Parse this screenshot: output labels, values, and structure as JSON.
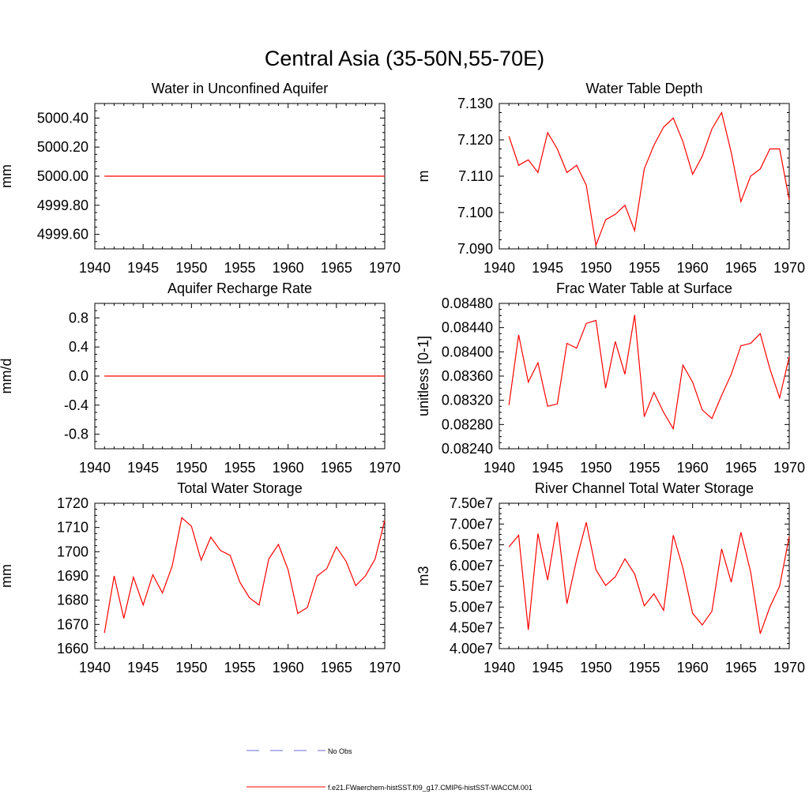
{
  "figure": {
    "title": "Central Asia (35-50N,55-70E)",
    "legend": [
      {
        "label": "No Obs",
        "color": "#6a6ad8",
        "dash": true
      },
      {
        "label": "f.e21.FWaerchem-histSST.f09_g17.CMIP6-histSST-WACCM.001",
        "color": "#ff0000",
        "dash": false
      }
    ]
  },
  "chart_data": [
    {
      "type": "line",
      "title": "Water in Unconfined Aquifer",
      "ylabel": "mm",
      "xlim": [
        1940,
        1970
      ],
      "ylim": [
        4999.5,
        5000.5
      ],
      "xticks": [
        "1940",
        "1945",
        "1950",
        "1955",
        "1960",
        "1965",
        "1970"
      ],
      "yticks": [
        {
          "v": 4999.6,
          "label": "4999.60"
        },
        {
          "v": 4999.8,
          "label": "4999.80"
        },
        {
          "v": 5000.0,
          "label": "5000.00"
        },
        {
          "v": 5000.2,
          "label": "5000.20"
        },
        {
          "v": 5000.4,
          "label": "5000.40"
        }
      ],
      "x": [
        1941,
        1942,
        1943,
        1944,
        1945,
        1946,
        1947,
        1948,
        1949,
        1950,
        1951,
        1952,
        1953,
        1954,
        1955,
        1956,
        1957,
        1958,
        1959,
        1960,
        1961,
        1962,
        1963,
        1964,
        1965,
        1966,
        1967,
        1968,
        1969,
        1970
      ],
      "values": [
        5000,
        5000,
        5000,
        5000,
        5000,
        5000,
        5000,
        5000,
        5000,
        5000,
        5000,
        5000,
        5000,
        5000,
        5000,
        5000,
        5000,
        5000,
        5000,
        5000,
        5000,
        5000,
        5000,
        5000,
        5000,
        5000,
        5000,
        5000,
        5000,
        5000
      ],
      "color": "#ff0000"
    },
    {
      "type": "line",
      "title": "Water Table Depth",
      "ylabel": "m",
      "xlim": [
        1940,
        1970
      ],
      "ylim": [
        7.09,
        7.13
      ],
      "xticks": [
        "1940",
        "1945",
        "1950",
        "1955",
        "1960",
        "1965",
        "1970"
      ],
      "yticks": [
        {
          "v": 7.09,
          "label": "7.090"
        },
        {
          "v": 7.1,
          "label": "7.100"
        },
        {
          "v": 7.11,
          "label": "7.110"
        },
        {
          "v": 7.12,
          "label": "7.120"
        },
        {
          "v": 7.13,
          "label": "7.130"
        }
      ],
      "x": [
        1941,
        1942,
        1943,
        1944,
        1945,
        1946,
        1947,
        1948,
        1949,
        1950,
        1951,
        1952,
        1953,
        1954,
        1955,
        1956,
        1957,
        1958,
        1959,
        1960,
        1961,
        1962,
        1963,
        1964,
        1965,
        1966,
        1967,
        1968,
        1969,
        1970
      ],
      "values": [
        7.121,
        7.113,
        7.1145,
        7.111,
        7.122,
        7.1175,
        7.111,
        7.113,
        7.1075,
        7.091,
        7.098,
        7.0995,
        7.102,
        7.095,
        7.112,
        7.1185,
        7.1235,
        7.126,
        7.1195,
        7.1105,
        7.1155,
        7.123,
        7.1275,
        7.1165,
        7.103,
        7.11,
        7.112,
        7.1175,
        7.1175,
        7.1035
      ],
      "color": "#ff0000"
    },
    {
      "type": "line",
      "title": "Aquifer Recharge Rate",
      "ylabel": "mm/d",
      "xlim": [
        1940,
        1970
      ],
      "ylim": [
        -1.0,
        1.0
      ],
      "xticks": [
        "1940",
        "1945",
        "1950",
        "1955",
        "1960",
        "1965",
        "1970"
      ],
      "yticks": [
        {
          "v": -0.8,
          "label": "-0.8"
        },
        {
          "v": -0.4,
          "label": "-0.4"
        },
        {
          "v": 0.0,
          "label": "0.0"
        },
        {
          "v": 0.4,
          "label": "0.4"
        },
        {
          "v": 0.8,
          "label": "0.8"
        }
      ],
      "x": [
        1941,
        1942,
        1943,
        1944,
        1945,
        1946,
        1947,
        1948,
        1949,
        1950,
        1951,
        1952,
        1953,
        1954,
        1955,
        1956,
        1957,
        1958,
        1959,
        1960,
        1961,
        1962,
        1963,
        1964,
        1965,
        1966,
        1967,
        1968,
        1969,
        1970
      ],
      "values": [
        0,
        0,
        0,
        0,
        0,
        0,
        0,
        0,
        0,
        0,
        0,
        0,
        0,
        0,
        0,
        0,
        0,
        0,
        0,
        0,
        0,
        0,
        0,
        0,
        0,
        0,
        0,
        0,
        0,
        0
      ],
      "color": "#ff0000"
    },
    {
      "type": "line",
      "title": "Frac Water Table at Surface",
      "ylabel": "unitless [0-1]",
      "xlim": [
        1940,
        1970
      ],
      "ylim": [
        0.0824,
        0.0848
      ],
      "xticks": [
        "1940",
        "1945",
        "1950",
        "1955",
        "1960",
        "1965",
        "1970"
      ],
      "yticks": [
        {
          "v": 0.0824,
          "label": "0.08240"
        },
        {
          "v": 0.0828,
          "label": "0.08280"
        },
        {
          "v": 0.0832,
          "label": "0.08320"
        },
        {
          "v": 0.0836,
          "label": "0.08360"
        },
        {
          "v": 0.084,
          "label": "0.08400"
        },
        {
          "v": 0.0844,
          "label": "0.08440"
        },
        {
          "v": 0.0848,
          "label": "0.08480"
        }
      ],
      "x": [
        1941,
        1942,
        1943,
        1944,
        1945,
        1946,
        1947,
        1948,
        1949,
        1950,
        1951,
        1952,
        1953,
        1954,
        1955,
        1956,
        1957,
        1958,
        1959,
        1960,
        1961,
        1962,
        1963,
        1964,
        1965,
        1966,
        1967,
        1968,
        1969,
        1970
      ],
      "values": [
        0.08312,
        0.08428,
        0.0835,
        0.08382,
        0.0831,
        0.08314,
        0.08414,
        0.08406,
        0.08447,
        0.08452,
        0.0834,
        0.08417,
        0.08363,
        0.08461,
        0.08293,
        0.08333,
        0.083,
        0.08273,
        0.08378,
        0.0835,
        0.08304,
        0.0829,
        0.08328,
        0.08363,
        0.0841,
        0.08414,
        0.0843,
        0.08372,
        0.08324,
        0.08392
      ],
      "color": "#ff0000"
    },
    {
      "type": "line",
      "title": "Total Water Storage",
      "ylabel": "mm",
      "xlim": [
        1940,
        1970
      ],
      "ylim": [
        1660,
        1720
      ],
      "xticks": [
        "1940",
        "1945",
        "1950",
        "1955",
        "1960",
        "1965",
        "1970"
      ],
      "yticks": [
        {
          "v": 1660,
          "label": "1660"
        },
        {
          "v": 1670,
          "label": "1670"
        },
        {
          "v": 1680,
          "label": "1680"
        },
        {
          "v": 1690,
          "label": "1690"
        },
        {
          "v": 1700,
          "label": "1700"
        },
        {
          "v": 1710,
          "label": "1710"
        },
        {
          "v": 1720,
          "label": "1720"
        }
      ],
      "x": [
        1941,
        1942,
        1943,
        1944,
        1945,
        1946,
        1947,
        1948,
        1949,
        1950,
        1951,
        1952,
        1953,
        1954,
        1955,
        1956,
        1957,
        1958,
        1959,
        1960,
        1961,
        1962,
        1963,
        1964,
        1965,
        1966,
        1967,
        1968,
        1969,
        1970
      ],
      "values": [
        1666.5,
        1690,
        1672.5,
        1689.5,
        1678,
        1690.5,
        1683,
        1694,
        1714,
        1710.5,
        1696.5,
        1706,
        1700.5,
        1698.5,
        1687.5,
        1681,
        1678,
        1697,
        1703,
        1692.5,
        1674.5,
        1677,
        1690,
        1693,
        1702,
        1696,
        1686,
        1690,
        1697,
        1713
      ],
      "color": "#ff0000"
    },
    {
      "type": "line",
      "title": "River Channel Total Water Storage",
      "ylabel": "m3",
      "xlim": [
        1940,
        1970
      ],
      "ylim": [
        40000000,
        75000000
      ],
      "xticks": [
        "1940",
        "1945",
        "1950",
        "1955",
        "1960",
        "1965",
        "1970"
      ],
      "yticks": [
        {
          "v": 40000000,
          "label": "4.00e7"
        },
        {
          "v": 45000000,
          "label": "4.50e7"
        },
        {
          "v": 50000000,
          "label": "5.00e7"
        },
        {
          "v": 55000000,
          "label": "5.50e7"
        },
        {
          "v": 60000000,
          "label": "6.00e7"
        },
        {
          "v": 65000000,
          "label": "6.50e7"
        },
        {
          "v": 70000000,
          "label": "7.00e7"
        },
        {
          "v": 75000000,
          "label": "7.50e7"
        }
      ],
      "x": [
        1941,
        1942,
        1943,
        1944,
        1945,
        1946,
        1947,
        1948,
        1949,
        1950,
        1951,
        1952,
        1953,
        1954,
        1955,
        1956,
        1957,
        1958,
        1959,
        1960,
        1961,
        1962,
        1963,
        1964,
        1965,
        1966,
        1967,
        1968,
        1969,
        1970
      ],
      "values": [
        64500000,
        67300000,
        44500000,
        67700000,
        56500000,
        70500000,
        50800000,
        61500000,
        70400000,
        59000000,
        55200000,
        57300000,
        61600000,
        58000000,
        50300000,
        53200000,
        49200000,
        67300000,
        59400000,
        48500000,
        45700000,
        49000000,
        64000000,
        56000000,
        68000000,
        58500000,
        43600000,
        50000000,
        55000000,
        67000000
      ],
      "color": "#ff0000"
    }
  ]
}
